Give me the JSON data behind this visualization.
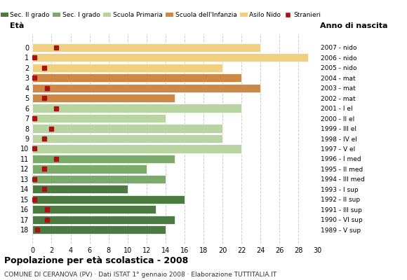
{
  "ages": [
    18,
    17,
    16,
    15,
    14,
    13,
    12,
    11,
    10,
    9,
    8,
    7,
    6,
    5,
    4,
    3,
    2,
    1,
    0
  ],
  "years": [
    "1989 - V sup",
    "1990 - VI sup",
    "1991 - III sup",
    "1992 - II sup",
    "1993 - I sup",
    "1994 - III med",
    "1995 - II med",
    "1996 - I med",
    "1997 - V el",
    "1998 - IV el",
    "1999 - III el",
    "2000 - II el",
    "2001 - I el",
    "2002 - mat",
    "2003 - mat",
    "2004 - mat",
    "2005 - nido",
    "2006 - nido",
    "2007 - nido"
  ],
  "bar_values": [
    14,
    15,
    13,
    16,
    10,
    14,
    12,
    15,
    22,
    20,
    20,
    14,
    22,
    15,
    24,
    22,
    20,
    29,
    24
  ],
  "bar_colors": [
    "#4a7c42",
    "#4a7c42",
    "#4a7c42",
    "#4a7c42",
    "#4a7c42",
    "#7aab6a",
    "#7aab6a",
    "#7aab6a",
    "#b8d4a0",
    "#b8d4a0",
    "#b8d4a0",
    "#b8d4a0",
    "#b8d4a0",
    "#cc8844",
    "#cc8844",
    "#cc8844",
    "#f0d080",
    "#f0d080",
    "#f0d080"
  ],
  "stranieri_values": [
    0.5,
    1.5,
    1.5,
    0.2,
    1.2,
    0.2,
    1.2,
    2.5,
    0.2,
    1.2,
    2.0,
    0.2,
    2.5,
    1.2,
    1.5,
    0.2,
    1.2,
    0.2,
    2.5
  ],
  "legend_labels": [
    "Sec. II grado",
    "Sec. I grado",
    "Scuola Primaria",
    "Scuola dell'Infanzia",
    "Asilo Nido",
    "Stranieri"
  ],
  "legend_colors": [
    "#4a7c42",
    "#7aab6a",
    "#b8d4a0",
    "#cc8844",
    "#f0d080",
    "#aa1111"
  ],
  "title": "Popolazione per età scolastica - 2008",
  "subtitle": "COMUNE DI CERANOVA (PV) · Dati ISTAT 1° gennaio 2008 · Elaborazione TUTTITALIA.IT",
  "xlabel_eta": "Età",
  "xlabel_anno": "Anno di nascita",
  "xlim": [
    0,
    30
  ],
  "background_color": "#ffffff",
  "bar_height": 0.85
}
